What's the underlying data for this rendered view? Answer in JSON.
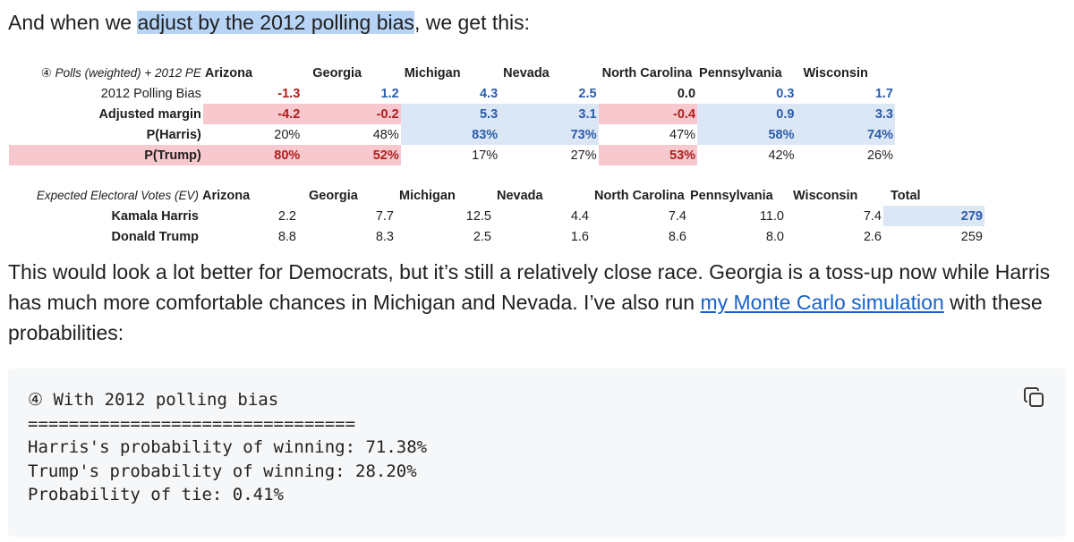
{
  "intro": {
    "before": "And when we ",
    "highlight": "adjust by the 2012 polling bias",
    "after": ", we get this:"
  },
  "table1": {
    "header_label": "④ Polls (weighted) + 2012 PE",
    "states": [
      "Arizona",
      "Georgia",
      "Michigan",
      "Nevada",
      "North Carolina",
      "Pennsylvania",
      "Wisconsin"
    ],
    "rows": [
      {
        "label": "2012 Polling Bias",
        "values": [
          "-1.3",
          "1.2",
          "4.3",
          "2.5",
          "0.0",
          "0.3",
          "1.7"
        ]
      },
      {
        "label": "Adjusted margin",
        "values": [
          "-4.2",
          "-0.2",
          "5.3",
          "3.1",
          "-0.4",
          "0.9",
          "3.3"
        ]
      },
      {
        "label": "P(Harris)",
        "values": [
          "20%",
          "48%",
          "83%",
          "73%",
          "47%",
          "58%",
          "74%"
        ]
      },
      {
        "label": "P(Trump)",
        "values": [
          "80%",
          "52%",
          "17%",
          "27%",
          "53%",
          "42%",
          "26%"
        ]
      }
    ]
  },
  "table2": {
    "header_label": "Expected Electoral Votes (EV)",
    "states": [
      "Arizona",
      "Georgia",
      "Michigan",
      "Nevada",
      "North Carolina",
      "Pennsylvania",
      "Wisconsin"
    ],
    "total_label": "Total",
    "rows": [
      {
        "label": "Kamala Harris",
        "values": [
          "2.2",
          "7.7",
          "12.5",
          "4.4",
          "7.4",
          "11.0",
          "7.4"
        ],
        "total": "279"
      },
      {
        "label": "Donald Trump",
        "values": [
          "8.8",
          "8.3",
          "2.5",
          "1.6",
          "8.6",
          "8.0",
          "2.6"
        ],
        "total": "259"
      }
    ]
  },
  "paragraph": {
    "text1": "This would look a lot better for Democrats, but it’s still a relatively close race. Georgia is a toss-up now while Harris has much more comfortable chances in Michigan and Nevada. I’ve also run ",
    "link": "my Monte Carlo simulation",
    "text2": " with these probabilities:"
  },
  "code": {
    "lines": [
      "④ With 2012 polling bias",
      "================================",
      "Harris's probability of winning: 71.38%",
      "Trump's probability of winning: 28.20%",
      "Probability of tie: 0.41%"
    ],
    "copy_icon": "copy-icon"
  },
  "colors": {
    "red_text": "#b31b1b",
    "blue_text": "#2b5ca8",
    "red_fill": "#f7c9ce",
    "blue_fill": "#dce7f6",
    "highlight": "#b7d4f7",
    "link": "#1a62c7"
  }
}
